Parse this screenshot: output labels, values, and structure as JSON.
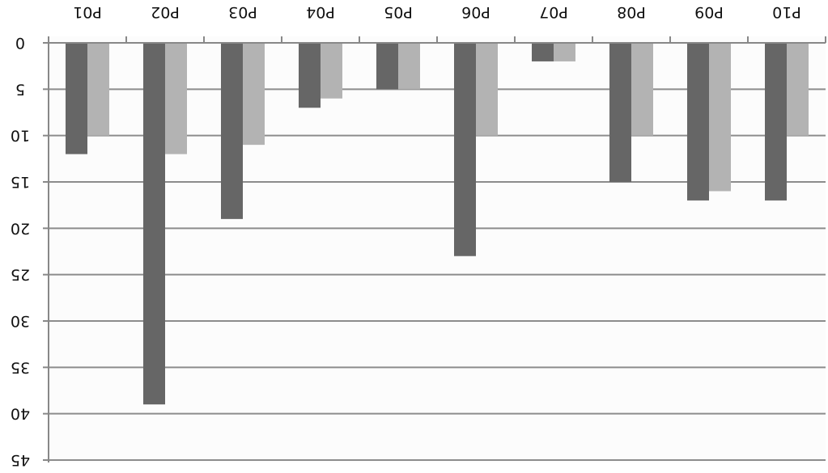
{
  "chart_data": {
    "type": "bar",
    "categories": [
      "P01",
      "P02",
      "P03",
      "P04",
      "P05",
      "P06",
      "P07",
      "P08",
      "P09",
      "P10"
    ],
    "series": [
      {
        "values": [
          12,
          39,
          19,
          7,
          5,
          23,
          2,
          15,
          17,
          17
        ],
        "color": "#666666"
      },
      {
        "values": [
          10,
          12,
          11,
          6,
          5,
          10,
          2,
          10,
          16,
          10
        ],
        "color": "#b3b3b3"
      }
    ],
    "ylim": [
      0,
      45
    ],
    "yticks": [
      "0",
      "5",
      "10",
      "15",
      "20",
      "25",
      "30",
      "35",
      "40",
      "45"
    ],
    "y_axis_inverted": true,
    "x_axis_position": "top",
    "image_orientation": "rotated-180",
    "grid": true,
    "legend": "none",
    "title": "",
    "xlabel": "",
    "ylabel": ""
  }
}
